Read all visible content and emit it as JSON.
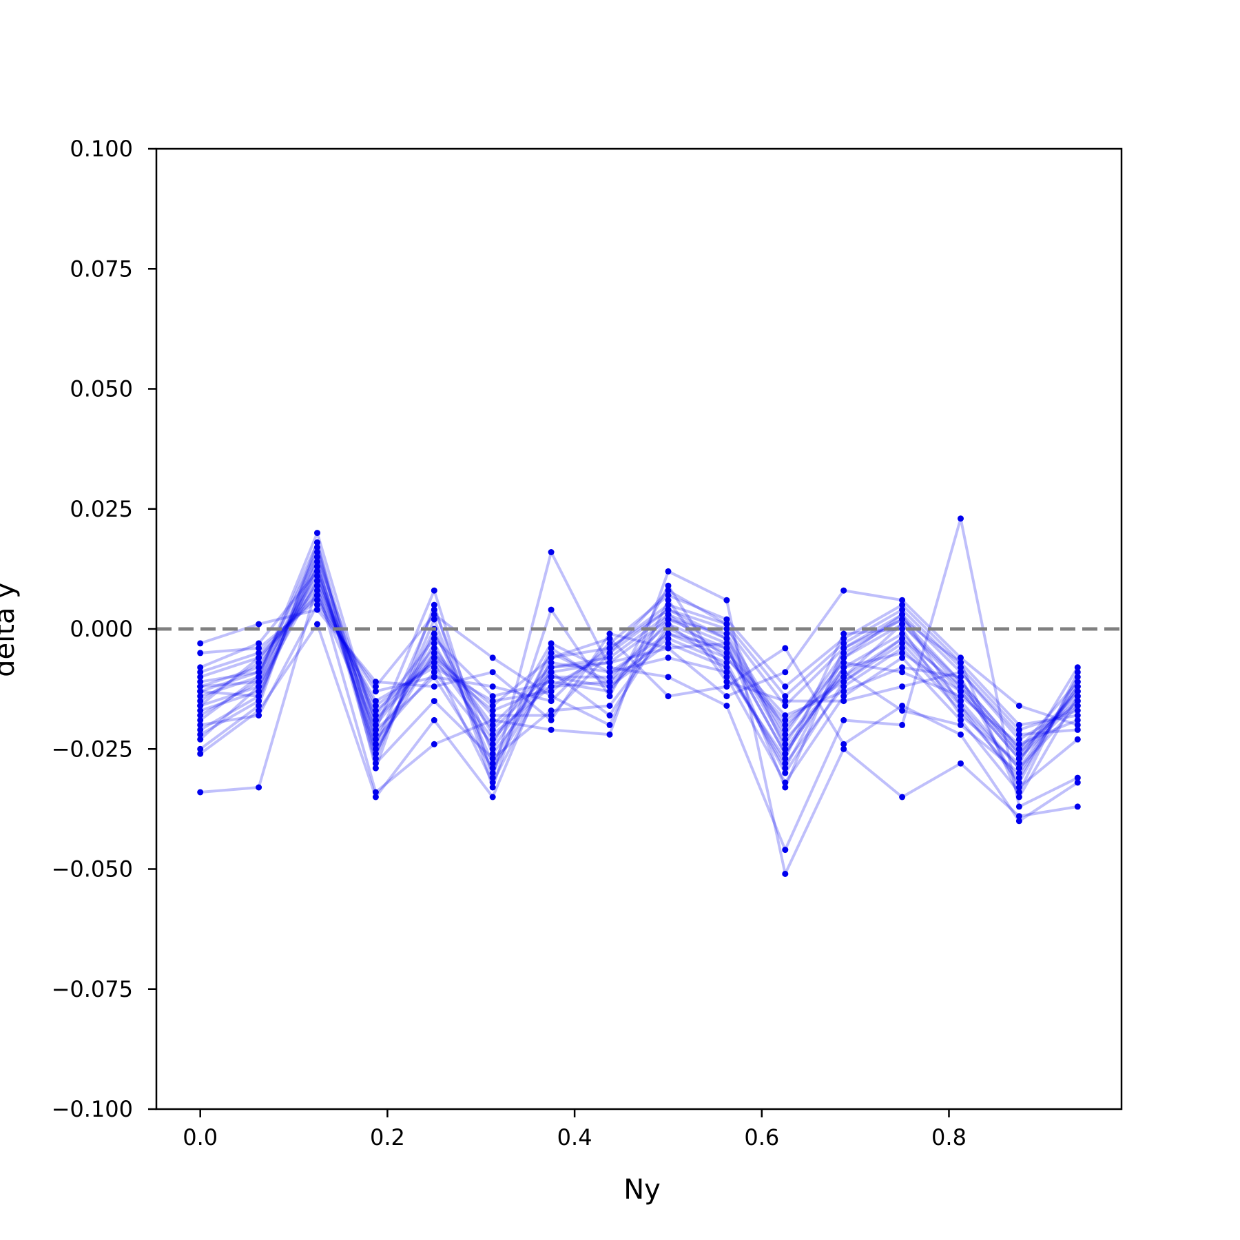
{
  "chart_data": {
    "type": "line",
    "title": "",
    "xlabel": "Ny",
    "ylabel": "delta y",
    "xlim": [
      -0.0469,
      0.9844
    ],
    "ylim": [
      -0.1,
      0.1
    ],
    "xticks": [
      0.0,
      0.2,
      0.4,
      0.6,
      0.8
    ],
    "xtick_labels": [
      "0.0",
      "0.2",
      "0.4",
      "0.6",
      "0.8"
    ],
    "yticks": [
      -0.1,
      -0.075,
      -0.05,
      -0.025,
      0.0,
      0.025,
      0.05,
      0.075,
      0.1
    ],
    "ytick_labels": [
      "−0.100",
      "−0.075",
      "−0.050",
      "−0.025",
      "0.000",
      "0.025",
      "0.050",
      "0.075",
      "0.100"
    ],
    "grid": false,
    "legend": "none",
    "reference_line": {
      "y": 0.0,
      "style": "dashed",
      "color": "#808080"
    },
    "series_color": "#0000ee",
    "x": [
      0.0,
      0.0625,
      0.125,
      0.1875,
      0.25,
      0.3125,
      0.375,
      0.4375,
      0.5,
      0.5625,
      0.625,
      0.6875,
      0.75,
      0.8125,
      0.875,
      0.9375
    ],
    "series": [
      {
        "values": [
          -0.013,
          -0.009,
          0.01,
          -0.02,
          -0.005,
          -0.021,
          -0.009,
          -0.007,
          0.002,
          -0.003,
          -0.024,
          -0.006,
          0.001,
          -0.012,
          -0.026,
          -0.014
        ]
      },
      {
        "values": [
          -0.016,
          -0.012,
          0.012,
          -0.024,
          -0.003,
          -0.025,
          -0.007,
          -0.009,
          -0.001,
          -0.006,
          -0.02,
          -0.01,
          -0.002,
          -0.015,
          -0.029,
          -0.012
        ]
      },
      {
        "values": [
          -0.01,
          -0.006,
          0.008,
          -0.016,
          -0.007,
          -0.017,
          -0.012,
          -0.005,
          0.004,
          0.0,
          -0.016,
          -0.004,
          0.003,
          -0.009,
          -0.023,
          -0.016
        ]
      },
      {
        "values": [
          -0.021,
          -0.014,
          0.015,
          -0.027,
          0.002,
          -0.03,
          -0.004,
          -0.012,
          -0.003,
          -0.008,
          -0.028,
          -0.012,
          -0.004,
          -0.017,
          -0.031,
          -0.011
        ]
      },
      {
        "values": [
          -0.005,
          -0.004,
          0.006,
          -0.013,
          -0.01,
          -0.012,
          -0.015,
          -0.003,
          0.007,
          0.002,
          -0.012,
          -0.002,
          0.005,
          -0.007,
          -0.02,
          -0.018
        ]
      },
      {
        "values": [
          -0.025,
          -0.016,
          0.018,
          -0.029,
          0.005,
          -0.033,
          0.004,
          -0.014,
          0.009,
          -0.01,
          -0.032,
          -0.014,
          -0.006,
          -0.019,
          -0.034,
          -0.009
        ]
      },
      {
        "values": [
          -0.003,
          0.001,
          0.004,
          -0.011,
          -0.012,
          -0.009,
          -0.019,
          -0.001,
          -0.004,
          -0.014,
          -0.009,
          0.008,
          0.006,
          -0.006,
          -0.016,
          -0.02
        ]
      },
      {
        "values": [
          -0.034,
          -0.033,
          0.009,
          -0.034,
          -0.024,
          -0.019,
          -0.021,
          -0.022,
          0.012,
          0.006,
          -0.051,
          -0.025,
          -0.035,
          -0.028,
          -0.039,
          -0.037
        ]
      },
      {
        "values": [
          -0.018,
          -0.011,
          0.013,
          -0.022,
          -0.006,
          -0.023,
          -0.01,
          -0.01,
          0.001,
          -0.004,
          -0.026,
          -0.008,
          -0.001,
          -0.013,
          -0.027,
          -0.013
        ]
      },
      {
        "values": [
          -0.012,
          -0.008,
          0.011,
          -0.019,
          -0.004,
          -0.02,
          -0.008,
          -0.006,
          0.003,
          -0.002,
          -0.022,
          -0.005,
          0.002,
          -0.011,
          -0.025,
          -0.015
        ]
      },
      {
        "values": [
          -0.022,
          -0.015,
          0.017,
          -0.026,
          0.0,
          -0.028,
          -0.005,
          -0.011,
          -0.002,
          -0.007,
          -0.03,
          -0.011,
          -0.003,
          -0.016,
          -0.032,
          -0.01
        ]
      },
      {
        "values": [
          -0.009,
          -0.005,
          0.007,
          -0.015,
          -0.008,
          -0.015,
          -0.013,
          -0.004,
          0.005,
          0.001,
          -0.014,
          -0.003,
          0.004,
          -0.008,
          -0.021,
          -0.017
        ]
      },
      {
        "values": [
          -0.014,
          -0.01,
          0.02,
          -0.021,
          0.008,
          -0.031,
          0.016,
          -0.008,
          -0.01,
          -0.016,
          -0.046,
          -0.019,
          -0.02,
          0.023,
          -0.037,
          -0.031
        ]
      },
      {
        "values": [
          -0.026,
          -0.017,
          0.001,
          -0.035,
          -0.019,
          -0.035,
          -0.006,
          -0.002,
          -0.014,
          -0.012,
          -0.004,
          -0.024,
          -0.016,
          -0.022,
          -0.04,
          -0.032
        ]
      },
      {
        "values": [
          -0.017,
          -0.013,
          0.014,
          -0.028,
          -0.015,
          -0.027,
          -0.017,
          -0.016,
          0.0,
          -0.005,
          -0.018,
          -0.013,
          -0.008,
          -0.01,
          -0.033,
          -0.023
        ]
      },
      {
        "values": [
          -0.015,
          -0.007,
          0.009,
          -0.018,
          -0.002,
          -0.014,
          -0.011,
          -0.013,
          0.002,
          -0.001,
          -0.021,
          -0.007,
          -0.009,
          -0.014,
          -0.024,
          -0.019
        ]
      },
      {
        "values": [
          -0.011,
          -0.009,
          0.016,
          -0.023,
          -0.009,
          -0.024,
          -0.003,
          -0.009,
          -0.006,
          -0.009,
          -0.027,
          -0.001,
          0.0,
          -0.018,
          -0.028,
          -0.008
        ]
      },
      {
        "values": [
          -0.02,
          -0.018,
          0.005,
          -0.012,
          0.003,
          -0.006,
          -0.014,
          -0.02,
          0.006,
          -0.011,
          -0.015,
          -0.015,
          -0.012,
          -0.009,
          -0.022,
          -0.021
        ]
      },
      {
        "values": [
          -0.008,
          -0.003,
          0.012,
          -0.025,
          -0.005,
          -0.018,
          -0.018,
          -0.005,
          0.008,
          0.001,
          -0.025,
          -0.009,
          -0.017,
          -0.02,
          -0.03,
          -0.012
        ]
      },
      {
        "values": [
          -0.023,
          -0.012,
          0.01,
          -0.017,
          -0.007,
          -0.032,
          -0.008,
          -0.007,
          -0.004,
          -0.003,
          -0.033,
          -0.004,
          0.002,
          -0.007,
          -0.035,
          -0.014
        ]
      },
      {
        "values": [
          -0.013,
          -0.014,
          0.013,
          -0.026,
          -0.001,
          -0.022,
          -0.012,
          -0.011,
          0.003,
          -0.006,
          -0.019,
          -0.011,
          -0.002,
          -0.012,
          -0.026,
          -0.013
        ]
      },
      {
        "values": [
          -0.016,
          -0.006,
          0.007,
          -0.021,
          -0.01,
          -0.029,
          -0.009,
          -0.018,
          0.001,
          -0.008,
          -0.029,
          -0.006,
          0.003,
          -0.016,
          -0.029,
          -0.016
        ]
      },
      {
        "values": [
          -0.012,
          -0.011,
          0.015,
          -0.019,
          -0.006,
          -0.016,
          -0.006,
          -0.004,
          0.004,
          -0.002,
          -0.023,
          -0.01,
          0.001,
          -0.011,
          -0.025,
          -0.011
        ]
      },
      {
        "values": [
          -0.019,
          -0.01,
          0.018,
          -0.024,
          0.004,
          -0.026,
          -0.01,
          -0.012,
          -0.001,
          -0.004,
          -0.026,
          -0.008,
          -0.005,
          -0.013,
          -0.027,
          -0.015
        ]
      }
    ]
  }
}
